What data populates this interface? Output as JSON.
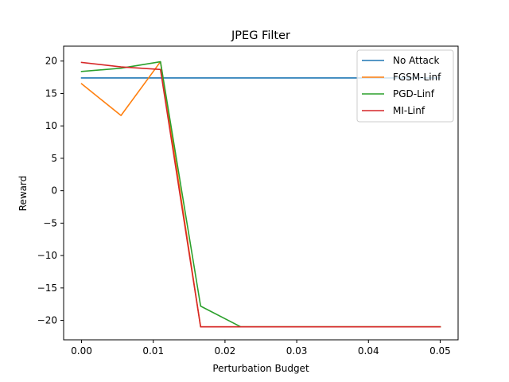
{
  "chart_data": {
    "type": "line",
    "title": "JPEG Filter",
    "xlabel": "Perturbation Budget",
    "ylabel": "Reward",
    "xlim": [
      -0.0025,
      0.0525
    ],
    "ylim": [
      -23,
      22.3
    ],
    "xticks": [
      0.0,
      0.01,
      0.02,
      0.03,
      0.04,
      0.05
    ],
    "xtick_labels": [
      "0.00",
      "0.01",
      "0.02",
      "0.03",
      "0.04",
      "0.05"
    ],
    "yticks": [
      20,
      15,
      10,
      5,
      0,
      -5,
      -10,
      -15,
      -20
    ],
    "ytick_labels": [
      "20",
      "15",
      "10",
      "5",
      "0",
      "−5",
      "−10",
      "−15",
      "−20"
    ],
    "grid": false,
    "legend_position": "top-right",
    "series": [
      {
        "name": "No Attack",
        "color": "#1f77b4",
        "x": [
          0.0,
          0.05
        ],
        "y": [
          17.4,
          17.4
        ]
      },
      {
        "name": "FGSM-Linf",
        "color": "#ff7f0e",
        "x": [
          0.0,
          0.0055,
          0.011,
          0.0166,
          0.0222,
          0.0277,
          0.0333,
          0.0388,
          0.0444,
          0.05
        ],
        "y": [
          16.5,
          11.6,
          19.9,
          -21.0,
          -21.0,
          -21.0,
          -21.0,
          -21.0,
          -21.0,
          -21.0
        ]
      },
      {
        "name": "PGD-Linf",
        "color": "#2ca02c",
        "x": [
          0.0,
          0.0055,
          0.011,
          0.0166,
          0.0222,
          0.0277,
          0.0333,
          0.0388,
          0.0444,
          0.05
        ],
        "y": [
          18.4,
          18.9,
          19.9,
          -17.8,
          -21.0,
          -21.0,
          -21.0,
          -21.0,
          -21.0,
          -21.0
        ]
      },
      {
        "name": "MI-Linf",
        "color": "#d62728",
        "x": [
          0.0,
          0.0055,
          0.011,
          0.0166,
          0.0222,
          0.0277,
          0.0333,
          0.0388,
          0.0444,
          0.05
        ],
        "y": [
          19.8,
          19.1,
          18.7,
          -21.0,
          -21.0,
          -21.0,
          -21.0,
          -21.0,
          -21.0,
          -21.0
        ]
      }
    ]
  }
}
